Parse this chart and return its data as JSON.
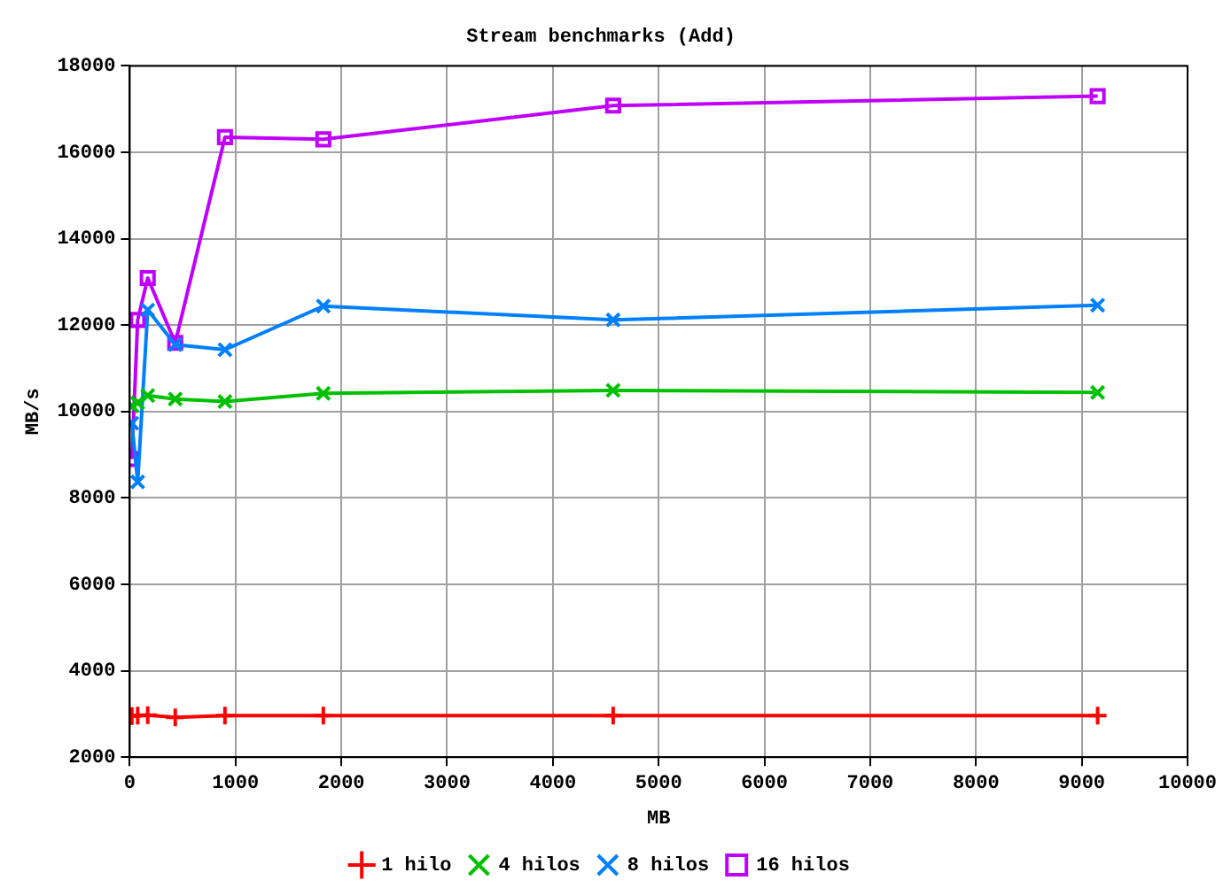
{
  "chart_data": {
    "type": "line",
    "title": "Stream benchmarks (Add)",
    "xlabel": "MB",
    "ylabel": "MB/s",
    "x": [
      20,
      75,
      170,
      430,
      900,
      1830,
      4570,
      9150
    ],
    "series": [
      {
        "name": "1 hilo",
        "color": "#ff0000",
        "marker": "plus",
        "values": [
          2950,
          2960,
          2970,
          2920,
          2960,
          2960,
          2960,
          2960
        ]
      },
      {
        "name": "4 hilos",
        "color": "#00c000",
        "marker": "cross",
        "values": [
          10130,
          10200,
          10370,
          10290,
          10230,
          10420,
          10490,
          10440
        ]
      },
      {
        "name": "8 hilos",
        "color": "#0080ff",
        "marker": "cross",
        "values": [
          9730,
          8370,
          12350,
          11550,
          11430,
          12440,
          12120,
          12460
        ]
      },
      {
        "name": "16 hilos",
        "color": "#c000ff",
        "marker": "square",
        "values": [
          8900,
          12120,
          13090,
          11590,
          16350,
          16300,
          17080,
          17300
        ]
      }
    ],
    "xlim": [
      0,
      10000
    ],
    "xticks": [
      0,
      1000,
      2000,
      3000,
      4000,
      5000,
      6000,
      7000,
      8000,
      9000,
      10000
    ],
    "ylim": [
      2000,
      18000
    ],
    "yticks": [
      2000,
      4000,
      6000,
      8000,
      10000,
      12000,
      14000,
      16000,
      18000
    ],
    "grid": true,
    "legend": "bottom",
    "line_style": "solid"
  }
}
